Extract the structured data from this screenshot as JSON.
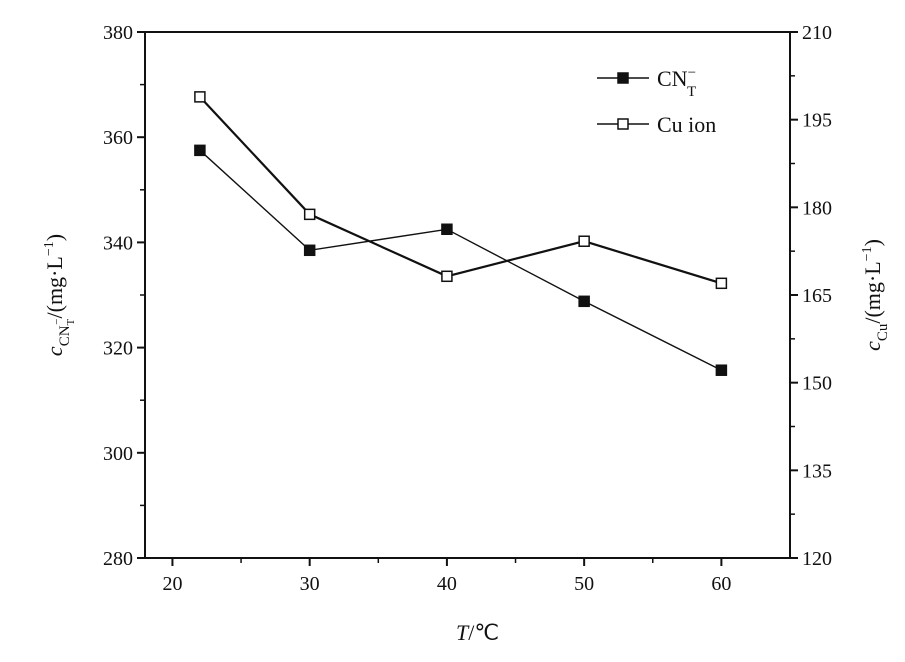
{
  "chart_data": {
    "type": "line",
    "x": [
      22,
      30,
      40,
      50,
      60
    ],
    "xlim": [
      18,
      65
    ],
    "xticks": [
      20,
      30,
      40,
      50,
      60
    ],
    "xlabel": {
      "italic": "T",
      "rest": "/℃"
    },
    "y_left": {
      "lim": [
        280,
        380
      ],
      "ticks": [
        280,
        300,
        320,
        340,
        360,
        380
      ],
      "label": {
        "italic": "c",
        "sub": "CN",
        "sub_sub": "T",
        "sub_sup": "−",
        "rest": "/(mg·L",
        "sup": "−1",
        "close": ")"
      }
    },
    "y_right": {
      "lim": [
        120,
        210
      ],
      "ticks": [
        120,
        135,
        150,
        165,
        180,
        195,
        210
      ],
      "label": {
        "italic": "c",
        "sub": "Cu",
        "rest": "/(mg·L",
        "sup": "−1",
        "close": ")"
      }
    },
    "series": [
      {
        "name": "CN",
        "name_sub": "T",
        "name_sup": "−",
        "axis": "left",
        "marker": "filled-square",
        "values": [
          357.5,
          338.5,
          342.5,
          328.8,
          315.7
        ]
      },
      {
        "name": "Cu ion",
        "axis": "right",
        "marker": "open-square",
        "values": [
          198.9,
          178.8,
          168.2,
          174.2,
          167.0
        ]
      }
    ],
    "legend_position": "top-right",
    "grid": false
  }
}
